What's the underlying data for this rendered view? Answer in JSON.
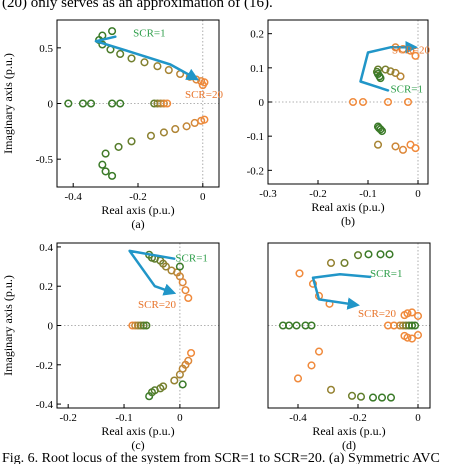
{
  "header_text": "(20) only serves as an approximation of (16).",
  "footer_text": "Fig. 6. Root locus of the system from SCR=1 to SCR=20. (a) Symmetric AVC",
  "colors": {
    "green_start": "#3a7a28",
    "orange_end": "#f08a3c",
    "arrow": "#2196c8",
    "label_green": "#2e9e4a",
    "label_orange": "#e8742a",
    "axis": "#000000",
    "zero_line": "#999999"
  },
  "chart_data": [
    {
      "type": "scatter",
      "panel_label": "(a)",
      "xlabel": "Real axis (p.u.)",
      "ylabel": "Imaginary axis (p.u.)",
      "xlim": [
        -0.45,
        0.05
      ],
      "ylim": [
        -0.75,
        0.75
      ],
      "xticks": [
        -0.4,
        -0.2,
        0
      ],
      "xtick_labels": [
        "-0.4",
        "-0.2",
        "0"
      ],
      "yticks": [
        -0.5,
        0,
        0.5
      ],
      "ytick_labels": [
        "-0.5",
        "0",
        "0.5"
      ],
      "annotations": [
        {
          "text": "SCR=1",
          "x": -0.215,
          "y": 0.6,
          "color": "label_green"
        },
        {
          "text": "SCR=20",
          "x": -0.055,
          "y": 0.05,
          "color": "label_orange"
        }
      ],
      "arrow": [
        [
          -0.27,
          0.6
        ],
        [
          -0.33,
          0.56
        ],
        [
          -0.23,
          0.47
        ],
        [
          -0.1,
          0.35
        ],
        [
          -0.025,
          0.23
        ]
      ],
      "points": [
        [
          -0.28,
          0.65,
          0
        ],
        [
          -0.31,
          0.61,
          0
        ],
        [
          -0.32,
          0.57,
          0
        ],
        [
          -0.31,
          0.53,
          0.05
        ],
        [
          -0.285,
          0.485,
          0.1
        ],
        [
          -0.255,
          0.445,
          0.2
        ],
        [
          -0.22,
          0.405,
          0.3
        ],
        [
          -0.18,
          0.37,
          0.4
        ],
        [
          -0.14,
          0.335,
          0.5
        ],
        [
          -0.105,
          0.3,
          0.6
        ],
        [
          -0.07,
          0.265,
          0.7
        ],
        [
          -0.04,
          0.24,
          0.8
        ],
        [
          -0.02,
          0.215,
          0.9
        ],
        [
          -0.005,
          0.2,
          0.95
        ],
        [
          0.005,
          0.19,
          1
        ],
        [
          0.0,
          0.165,
          1
        ],
        [
          -0.28,
          -0.65,
          0
        ],
        [
          -0.3,
          -0.61,
          0
        ],
        [
          -0.31,
          -0.55,
          0
        ],
        [
          -0.3,
          -0.45,
          0.05
        ],
        [
          -0.26,
          -0.39,
          0.15
        ],
        [
          -0.22,
          -0.34,
          0.25
        ],
        [
          -0.16,
          -0.29,
          0.45
        ],
        [
          -0.12,
          -0.26,
          0.55
        ],
        [
          -0.085,
          -0.23,
          0.65
        ],
        [
          -0.05,
          -0.205,
          0.75
        ],
        [
          -0.025,
          -0.175,
          0.85
        ],
        [
          -0.005,
          -0.155,
          0.95
        ],
        [
          0.005,
          -0.145,
          1
        ],
        [
          -0.415,
          0.0,
          0
        ],
        [
          -0.37,
          0.0,
          0
        ],
        [
          -0.345,
          0.0,
          0
        ],
        [
          -0.28,
          0.0,
          0
        ],
        [
          -0.255,
          0.0,
          0
        ],
        [
          -0.15,
          0.0,
          0.2
        ],
        [
          -0.14,
          0.0,
          0.4
        ],
        [
          -0.13,
          0.0,
          0.6
        ],
        [
          -0.12,
          0.0,
          0.8
        ],
        [
          -0.11,
          0.0,
          1
        ]
      ]
    },
    {
      "type": "scatter",
      "panel_label": "(b)",
      "xlabel": "Real axis (p.u.)",
      "ylabel": "",
      "xlim": [
        -0.3,
        0.02
      ],
      "ylim": [
        -0.24,
        0.24
      ],
      "xticks": [
        -0.3,
        -0.2,
        -0.1,
        0
      ],
      "xtick_labels": [
        "-0.3",
        "-0.2",
        "-0.1",
        "0"
      ],
      "yticks": [
        -0.2,
        -0.1,
        0,
        0.1,
        0.2
      ],
      "ytick_labels": [
        "-0.2",
        "-0.1",
        "0",
        "0.1",
        "0.2"
      ],
      "annotations": [
        {
          "text": "SCR=20",
          "x": -0.052,
          "y": 0.142,
          "color": "label_orange"
        },
        {
          "text": "SCR=1",
          "x": -0.055,
          "y": 0.028,
          "color": "label_green"
        }
      ],
      "arrow": [
        [
          -0.06,
          0.034
        ],
        [
          -0.115,
          0.06
        ],
        [
          -0.1,
          0.145
        ],
        [
          -0.055,
          0.16
        ],
        [
          -0.01,
          0.16
        ]
      ],
      "points": [
        [
          -0.045,
          0.16,
          0.9
        ],
        [
          -0.03,
          0.155,
          0.95
        ],
        [
          -0.015,
          0.15,
          1
        ],
        [
          -0.005,
          0.135,
          1
        ],
        [
          -0.035,
          0.075,
          0.7
        ],
        [
          -0.045,
          0.085,
          0.6
        ],
        [
          -0.055,
          0.09,
          0.5
        ],
        [
          -0.065,
          0.095,
          0.35
        ],
        [
          -0.08,
          0.095,
          0.25
        ],
        [
          -0.082,
          0.088,
          0.1
        ],
        [
          -0.08,
          0.082,
          0
        ],
        [
          -0.077,
          0.075,
          0
        ],
        [
          -0.075,
          0.07,
          0
        ],
        [
          -0.08,
          -0.072,
          0
        ],
        [
          -0.078,
          -0.076,
          0
        ],
        [
          -0.075,
          -0.08,
          0
        ],
        [
          -0.072,
          -0.085,
          0
        ],
        [
          -0.08,
          -0.125,
          0.6
        ],
        [
          -0.045,
          -0.13,
          0.8
        ],
        [
          -0.03,
          -0.14,
          0.9
        ],
        [
          -0.015,
          -0.125,
          1
        ],
        [
          -0.005,
          -0.135,
          1
        ],
        [
          -0.13,
          0.0,
          1
        ],
        [
          -0.11,
          0.0,
          1
        ],
        [
          -0.06,
          0.0,
          1
        ],
        [
          -0.02,
          0.0,
          1
        ]
      ]
    },
    {
      "type": "scatter",
      "panel_label": "(c)",
      "xlabel": "Real axis (p.u.)",
      "ylabel": "Imaginary axis (p.u.)",
      "xlim": [
        -0.22,
        0.07
      ],
      "ylim": [
        -0.42,
        0.42
      ],
      "xticks": [
        -0.2,
        -0.1,
        0
      ],
      "xtick_labels": [
        "-0.2",
        "-0.1",
        "0"
      ],
      "yticks": [
        -0.4,
        -0.2,
        0,
        0.2,
        0.4
      ],
      "ytick_labels": [
        "-0.4",
        "-0.2",
        "0",
        "0.2",
        "0.4"
      ],
      "annotations": [
        {
          "text": "SCR=1",
          "x": -0.008,
          "y": 0.325,
          "color": "label_green"
        },
        {
          "text": "SCR=20",
          "x": -0.075,
          "y": 0.09,
          "color": "label_orange"
        }
      ],
      "arrow": [
        [
          -0.01,
          0.34
        ],
        [
          -0.05,
          0.36
        ],
        [
          -0.09,
          0.38
        ],
        [
          -0.045,
          0.2
        ],
        [
          -0.015,
          0.17
        ]
      ],
      "points": [
        [
          -0.055,
          0.36,
          0.1
        ],
        [
          -0.05,
          0.345,
          0.15
        ],
        [
          -0.045,
          0.34,
          0.2
        ],
        [
          -0.035,
          0.33,
          0.25
        ],
        [
          -0.03,
          0.315,
          0.4
        ],
        [
          -0.025,
          0.3,
          0.5
        ],
        [
          -0.015,
          0.28,
          0.6
        ],
        [
          -0.005,
          0.27,
          0.7
        ],
        [
          0.0,
          0.25,
          0.8
        ],
        [
          0.005,
          0.22,
          0.9
        ],
        [
          0.01,
          0.18,
          0.95
        ],
        [
          0.015,
          0.14,
          1
        ],
        [
          0.0,
          0.3,
          0
        ],
        [
          -0.055,
          -0.36,
          0
        ],
        [
          -0.05,
          -0.34,
          0.1
        ],
        [
          -0.045,
          -0.33,
          0.15
        ],
        [
          -0.035,
          -0.32,
          0.25
        ],
        [
          -0.03,
          -0.31,
          0.35
        ],
        [
          -0.01,
          -0.28,
          0.5
        ],
        [
          0.0,
          -0.25,
          0.6
        ],
        [
          0.005,
          -0.22,
          0.7
        ],
        [
          0.01,
          -0.2,
          0.8
        ],
        [
          0.015,
          -0.18,
          0.9
        ],
        [
          0.02,
          -0.14,
          1
        ],
        [
          0.005,
          -0.3,
          0
        ],
        [
          -0.085,
          0.0,
          1
        ],
        [
          -0.08,
          0.0,
          0.8
        ],
        [
          -0.075,
          0.0,
          0.6
        ],
        [
          -0.07,
          0.0,
          0.4
        ],
        [
          -0.065,
          0.0,
          0.2
        ],
        [
          -0.06,
          0.0,
          0.1
        ]
      ]
    },
    {
      "type": "scatter",
      "panel_label": "(d)",
      "xlabel": "Real axis (p.u.)",
      "ylabel": "",
      "xlim": [
        -0.5,
        0.04
      ],
      "ylim": [
        -0.95,
        0.95
      ],
      "xticks": [
        -0.4,
        -0.2,
        0
      ],
      "xtick_labels": [
        "-0.4",
        "-0.2",
        "0"
      ],
      "yticks": [],
      "ytick_labels": [],
      "annotations": [
        {
          "text": "SCR=1",
          "x": -0.16,
          "y": 0.56,
          "color": "label_green"
        },
        {
          "text": "SCR=20",
          "x": -0.2,
          "y": 0.1,
          "color": "label_orange"
        }
      ],
      "arrow": [
        [
          -0.16,
          0.56
        ],
        [
          -0.26,
          0.59
        ],
        [
          -0.35,
          0.55
        ],
        [
          -0.33,
          0.3
        ],
        [
          -0.21,
          0.24
        ]
      ],
      "points": [
        [
          -0.395,
          0.6,
          1
        ],
        [
          -0.35,
          0.48,
          1
        ],
        [
          -0.33,
          0.34,
          1
        ],
        [
          -0.295,
          0.25,
          1
        ],
        [
          -0.29,
          0.72,
          0.5
        ],
        [
          -0.245,
          0.72,
          0.3
        ],
        [
          -0.2,
          0.81,
          0.2
        ],
        [
          -0.165,
          0.82,
          0
        ],
        [
          -0.125,
          0.82,
          0
        ],
        [
          -0.095,
          0.82,
          0
        ],
        [
          -0.4,
          -0.61,
          1
        ],
        [
          -0.355,
          -0.46,
          1
        ],
        [
          -0.33,
          -0.3,
          1
        ],
        [
          -0.29,
          -0.74,
          0.5
        ],
        [
          -0.22,
          -0.81,
          0.3
        ],
        [
          -0.19,
          -0.82,
          0.2
        ],
        [
          -0.15,
          -0.83,
          0
        ],
        [
          -0.12,
          -0.83,
          0
        ],
        [
          -0.09,
          -0.83,
          0
        ],
        [
          -0.45,
          0.0,
          0
        ],
        [
          -0.43,
          0.0,
          0
        ],
        [
          -0.405,
          0.0,
          0
        ],
        [
          -0.375,
          0.0,
          0
        ],
        [
          -0.355,
          0.0,
          0
        ],
        [
          -0.1,
          0.0,
          1
        ],
        [
          -0.08,
          0.0,
          1
        ],
        [
          -0.06,
          0.0,
          0.8
        ],
        [
          -0.05,
          0.0,
          0.6
        ],
        [
          -0.04,
          0.0,
          0.4
        ],
        [
          -0.03,
          0.0,
          0.2
        ],
        [
          -0.02,
          0.0,
          0
        ],
        [
          -0.01,
          0.0,
          0
        ],
        [
          -0.045,
          0.12,
          1
        ],
        [
          -0.035,
          0.14,
          1
        ],
        [
          -0.02,
          0.15,
          1
        ],
        [
          0.0,
          0.11,
          1
        ],
        [
          -0.045,
          -0.12,
          1
        ],
        [
          -0.035,
          -0.14,
          1
        ],
        [
          -0.02,
          -0.15,
          1
        ],
        [
          0.0,
          -0.11,
          1
        ]
      ]
    }
  ]
}
